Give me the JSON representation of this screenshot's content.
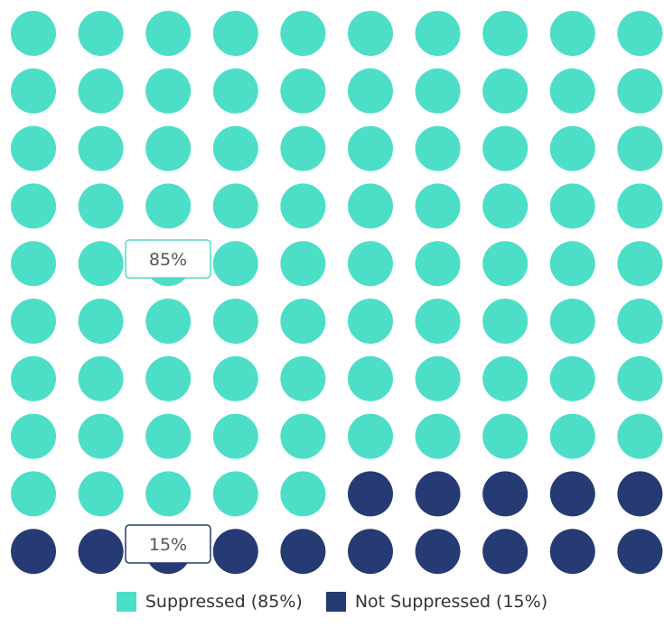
{
  "chart_data": {
    "type": "waffle",
    "grid": {
      "rows": 10,
      "cols": 10
    },
    "total_units": 100,
    "categories": [
      {
        "name": "Suppressed",
        "value": 85,
        "label": "85%",
        "legend": "Suppressed (85%)",
        "color": "#4ddec7"
      },
      {
        "name": "Not Suppressed",
        "value": 15,
        "label": "15%",
        "legend": "Not Suppressed (15%)",
        "color": "#263a73"
      }
    ],
    "legend_position": "bottom-center"
  }
}
